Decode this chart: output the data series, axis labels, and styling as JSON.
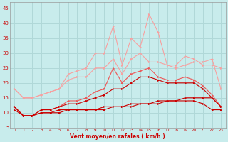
{
  "x": [
    0,
    1,
    2,
    3,
    4,
    5,
    6,
    7,
    8,
    9,
    10,
    11,
    12,
    13,
    14,
    15,
    16,
    17,
    18,
    19,
    20,
    21,
    22,
    23
  ],
  "line_light1": [
    18,
    15,
    15,
    16,
    17,
    18,
    23,
    24,
    25,
    30,
    30,
    39,
    26,
    35,
    32,
    43,
    37,
    26,
    26,
    29,
    28,
    26,
    26,
    25
  ],
  "line_light2": [
    18,
    15,
    15,
    16,
    17,
    18,
    21,
    22,
    22,
    25,
    25,
    28,
    23,
    28,
    30,
    27,
    27,
    26,
    25,
    26,
    27,
    27,
    28,
    18
  ],
  "line_mid1": [
    12,
    9,
    9,
    11,
    11,
    12,
    14,
    14,
    15,
    17,
    18,
    25,
    20,
    23,
    24,
    25,
    22,
    21,
    21,
    22,
    21,
    19,
    16,
    12
  ],
  "line_dark1": [
    12,
    9,
    9,
    11,
    11,
    12,
    13,
    13,
    14,
    15,
    16,
    18,
    18,
    20,
    22,
    22,
    21,
    20,
    20,
    20,
    20,
    18,
    15,
    12
  ],
  "line_dark2": [
    12,
    9,
    9,
    10,
    10,
    11,
    11,
    11,
    11,
    11,
    12,
    12,
    12,
    13,
    13,
    13,
    14,
    14,
    14,
    15,
    15,
    15,
    15,
    12
  ],
  "line_dark3": [
    11,
    9,
    9,
    10,
    10,
    10,
    11,
    11,
    11,
    11,
    11,
    12,
    12,
    12,
    13,
    13,
    13,
    14,
    14,
    14,
    14,
    13,
    11,
    11
  ],
  "bg_color": "#c8ecec",
  "grid_color": "#b0d8d8",
  "line_color_dark": "#cc0000",
  "line_color_mid": "#ee5555",
  "line_color_light": "#f8a0a0",
  "xlabel": "Vent moyen/en rafales ( km/h )",
  "ylim": [
    5,
    47
  ],
  "xlim": [
    -0.5,
    23.5
  ],
  "yticks": [
    5,
    10,
    15,
    20,
    25,
    30,
    35,
    40,
    45
  ],
  "xticks": [
    0,
    1,
    2,
    3,
    4,
    5,
    6,
    7,
    8,
    9,
    10,
    11,
    12,
    13,
    14,
    15,
    16,
    17,
    18,
    19,
    20,
    21,
    22,
    23
  ]
}
